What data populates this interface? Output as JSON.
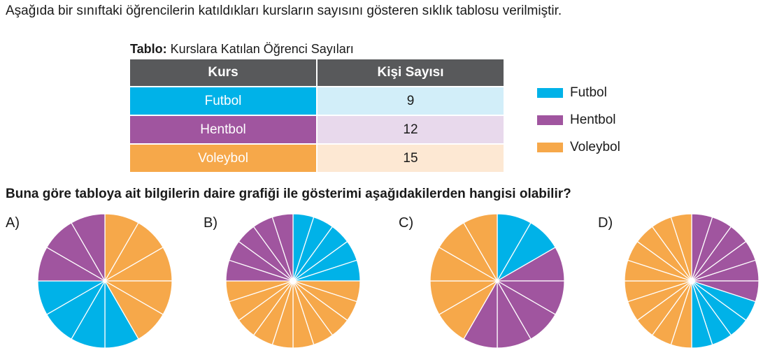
{
  "intro_text": "Aşağıda bir sınıftaki öğrencilerin katıldıkları kursların sayısını gösteren sıklık tablosu verilmiştir.",
  "table": {
    "caption_prefix": "Tablo:",
    "caption_text": "Kurslara Katılan Öğrenci Sayıları",
    "headers": [
      "Kurs",
      "Kişi Sayısı"
    ],
    "rows": [
      {
        "course": "Futbol",
        "count": "9",
        "color": "#00b2e8",
        "light": "#d2eef9"
      },
      {
        "course": "Hentbol",
        "count": "12",
        "color": "#a0559f",
        "light": "#e8d9ec"
      },
      {
        "course": "Voleybol",
        "count": "15",
        "color": "#f6a84a",
        "light": "#fde8d3"
      }
    ]
  },
  "legend": [
    {
      "label": "Futbol",
      "color": "#00b2e8"
    },
    {
      "label": "Hentbol",
      "color": "#a0559f"
    },
    {
      "label": "Voleybol",
      "color": "#f6a84a"
    }
  ],
  "question": "Buna göre tabloya ait bilgilerin daire grafiği ile gösterimi aşağıdakilerden hangisi olabilir?",
  "chart_data": [
    {
      "type": "pie",
      "label": "A)",
      "slice_count": 12,
      "slices": [
        {
          "course": "Voleybol",
          "count": 5
        },
        {
          "course": "Futbol",
          "count": 4
        },
        {
          "course": "Hentbol",
          "count": 3
        }
      ],
      "values": {
        "Futbol": 4,
        "Hentbol": 3,
        "Voleybol": 5
      }
    },
    {
      "type": "pie",
      "label": "B)",
      "slice_count": 20,
      "slices": [
        {
          "course": "Futbol",
          "count": 5
        },
        {
          "course": "Voleybol",
          "count": 10
        },
        {
          "course": "Hentbol",
          "count": 5
        }
      ],
      "values": {
        "Futbol": 5,
        "Hentbol": 5,
        "Voleybol": 10
      }
    },
    {
      "type": "pie",
      "label": "C)",
      "slice_count": 12,
      "slices": [
        {
          "course": "Futbol",
          "count": 2
        },
        {
          "course": "Hentbol",
          "count": 5
        },
        {
          "course": "Voleybol",
          "count": 5
        }
      ],
      "values": {
        "Futbol": 2,
        "Hentbol": 5,
        "Voleybol": 5
      }
    },
    {
      "type": "pie",
      "label": "D)",
      "slice_count": 20,
      "slices": [
        {
          "course": "Hentbol",
          "count": 6
        },
        {
          "course": "Futbol",
          "count": 4
        },
        {
          "course": "Voleybol",
          "count": 10
        }
      ],
      "values": {
        "Futbol": 4,
        "Hentbol": 6,
        "Voleybol": 10
      }
    }
  ]
}
